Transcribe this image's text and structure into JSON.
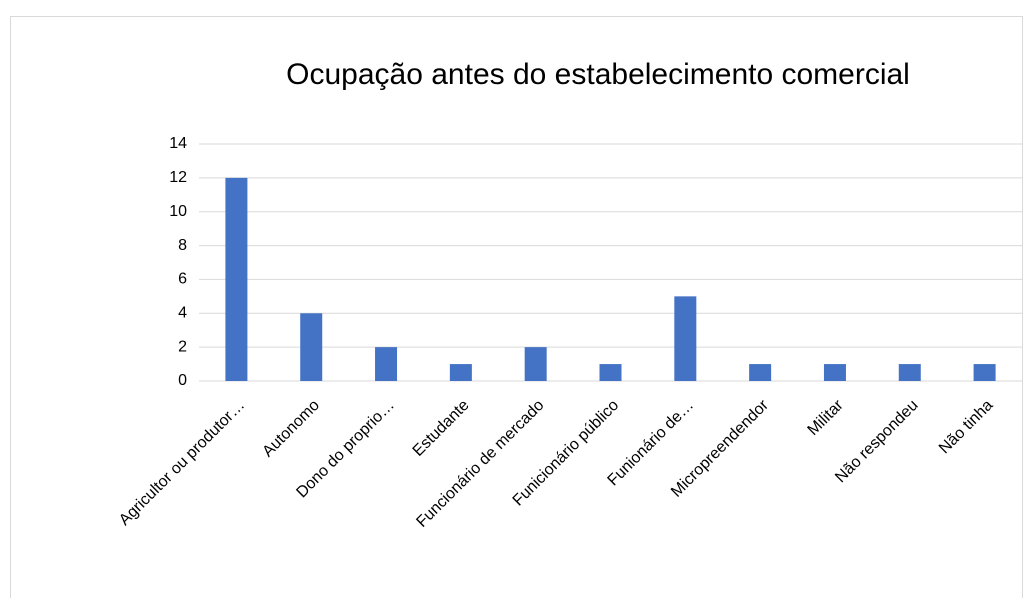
{
  "chart_data": {
    "type": "bar",
    "title": "Ocupação antes do estabelecimento comercial",
    "categories": [
      "Agricultor ou produtor…",
      "Autonomo",
      "Dono do proprio…",
      "Estudante",
      "Funcionário de mercado",
      "Funicionário público",
      "Funionário de…",
      "Micropreendendor",
      "Militar",
      "Não respondeu",
      "Não tinha"
    ],
    "values": [
      12,
      4,
      2,
      1,
      2,
      1,
      5,
      1,
      1,
      1,
      1
    ],
    "color": "#4472c4",
    "ylim": [
      0,
      14
    ],
    "yticks": [
      0,
      2,
      4,
      6,
      8,
      10,
      12,
      14
    ],
    "grid": true
  }
}
